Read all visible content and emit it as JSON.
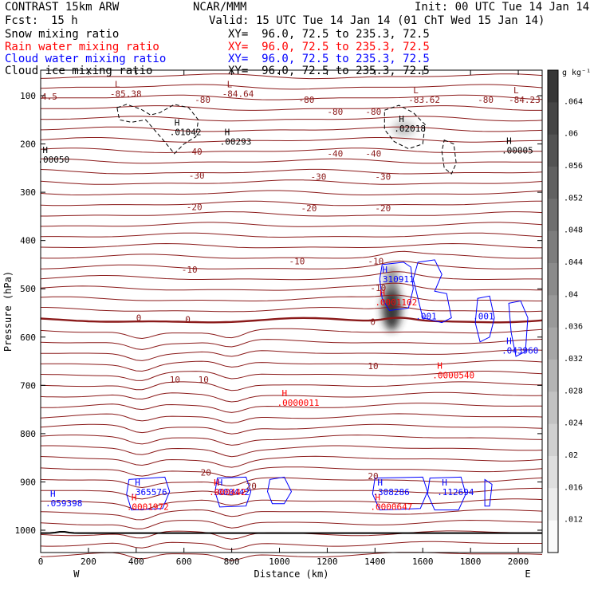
{
  "header": {
    "model": "CONTRAST 15km ARW",
    "center": "NCAR/MMM",
    "init": "Init: 00 UTC Tue 14 Jan 14",
    "fcst_label": "Fcst:",
    "fcst_value": "15 h",
    "valid": "Valid: 15 UTC Tue 14 Jan 14 (01 ChT Wed 15 Jan 14)",
    "fields": [
      {
        "name": "Snow mixing ratio",
        "xy": "XY=  96.0, 72.5 to 235.3, 72.5",
        "color": "#000000"
      },
      {
        "name": "Rain water mixing ratio",
        "xy": "XY=  96.0, 72.5 to 235.3, 72.5",
        "color": "#ff0000"
      },
      {
        "name": "Cloud water mixing ratio",
        "xy": "XY=  96.0, 72.5 to 235.3, 72.5",
        "color": "#0000ff"
      },
      {
        "name": "Cloud ice mixing ratio",
        "xy": "XY=  96.0, 72.5 to 235.3, 72.5",
        "color": "#000000"
      }
    ]
  },
  "chart_data": {
    "type": "contour",
    "xlabel": "Distance (km)",
    "ylabel": "Pressure (hPa)",
    "xlim": [
      0,
      2100
    ],
    "ylim": [
      1050,
      50
    ],
    "x_ticks": [
      0,
      200,
      400,
      600,
      800,
      1000,
      1200,
      1400,
      1600,
      1800,
      2000
    ],
    "y_ticks": [
      100,
      200,
      300,
      400,
      500,
      600,
      700,
      800,
      900,
      1000
    ],
    "x_end_labels": {
      "left": "W",
      "right": "E"
    },
    "colorbar": {
      "unit": "g kg⁻¹",
      "ticks": [
        ".064",
        ".06",
        ".056",
        ".052",
        ".048",
        ".044",
        ".04",
        ".036",
        ".032",
        ".028",
        ".024",
        ".02",
        ".016",
        ".012"
      ]
    },
    "colors": {
      "temperature": "#8b1a1a",
      "rain": "#ff0000",
      "cloud_water": "#0000ff",
      "cloud_ice": "#000000",
      "snow": "#444444"
    },
    "temperature_contour_labels": [
      {
        "x": 645,
        "y": 108,
        "text": "-80"
      },
      {
        "x": 1080,
        "y": 108,
        "text": "-80"
      },
      {
        "x": 1830,
        "y": 108,
        "text": "-80"
      },
      {
        "x": 1200,
        "y": 133,
        "text": "-80"
      },
      {
        "x": 1360,
        "y": 133,
        "text": "-80"
      },
      {
        "x": 610,
        "y": 216,
        "text": "-40"
      },
      {
        "x": 1200,
        "y": 220,
        "text": "-40"
      },
      {
        "x": 1360,
        "y": 220,
        "text": "-40"
      },
      {
        "x": 620,
        "y": 265,
        "text": "-30"
      },
      {
        "x": 1130,
        "y": 268,
        "text": "-30"
      },
      {
        "x": 1400,
        "y": 268,
        "text": "-30"
      },
      {
        "x": 610,
        "y": 330,
        "text": "-20"
      },
      {
        "x": 1090,
        "y": 333,
        "text": "-20"
      },
      {
        "x": 1400,
        "y": 333,
        "text": "-20"
      },
      {
        "x": 1040,
        "y": 443,
        "text": "-10"
      },
      {
        "x": 1370,
        "y": 443,
        "text": "-10"
      },
      {
        "x": 590,
        "y": 460,
        "text": "-10"
      },
      {
        "x": 1380,
        "y": 498,
        "text": "-10"
      },
      {
        "x": 400,
        "y": 560,
        "text": "0"
      },
      {
        "x": 605,
        "y": 563,
        "text": "0"
      },
      {
        "x": 1380,
        "y": 568,
        "text": "0"
      },
      {
        "x": 1370,
        "y": 660,
        "text": "10"
      },
      {
        "x": 540,
        "y": 688,
        "text": "10"
      },
      {
        "x": 660,
        "y": 688,
        "text": "10"
      },
      {
        "x": 670,
        "y": 880,
        "text": "20"
      },
      {
        "x": 860,
        "y": 908,
        "text": "20"
      },
      {
        "x": 1370,
        "y": 888,
        "text": "20"
      }
    ],
    "extrema_labels": [
      {
        "x": 310,
        "y": 86,
        "letter": "L",
        "value": "-85.38",
        "color": "#8b1a1a"
      },
      {
        "x": 780,
        "y": 86,
        "letter": "L",
        "value": "-84.64",
        "color": "#8b1a1a"
      },
      {
        "x": 1560,
        "y": 98,
        "letter": "L",
        "value": "-83.62",
        "color": "#8b1a1a"
      },
      {
        "x": 1980,
        "y": 98,
        "letter": "L",
        "value": "-84.23",
        "color": "#8b1a1a"
      },
      {
        "x": 560,
        "y": 165,
        "letter": "H",
        "value": ".01042",
        "color": "#000000"
      },
      {
        "x": 770,
        "y": 185,
        "letter": "H",
        "value": ".00293",
        "color": "#000000"
      },
      {
        "x": 1500,
        "y": 158,
        "letter": "H",
        "value": ".02018",
        "color": "#000000"
      },
      {
        "x": 1950,
        "y": 203,
        "letter": "H",
        "value": ".00005",
        "color": "#000000"
      },
      {
        "x": 8,
        "y": 222,
        "letter": "H",
        "value": ".00050",
        "color": "#000000"
      },
      {
        "x": 1430,
        "y": 470,
        "letter": "H",
        "value": ".310911",
        "color": "#0000ff"
      },
      {
        "x": 1420,
        "y": 518,
        "letter": "H",
        "value": ".0001102",
        "color": "#ff0000"
      },
      {
        "x": 1950,
        "y": 618,
        "letter": "H",
        "value": ".043960",
        "color": "#0000ff"
      },
      {
        "x": 1660,
        "y": 669,
        "letter": "H",
        "value": ".0000540",
        "color": "#ff0000"
      },
      {
        "x": 1010,
        "y": 726,
        "letter": "H",
        "value": ".0000011",
        "color": "#ff0000"
      },
      {
        "x": 40,
        "y": 934,
        "letter": "H",
        "value": ".059398",
        "color": "#0000ff"
      },
      {
        "x": 395,
        "y": 911,
        "letter": "H",
        "value": ".365576",
        "color": "#0000ff"
      },
      {
        "x": 380,
        "y": 941,
        "letter": "H",
        "value": ".0001972",
        "color": "#ff0000"
      },
      {
        "x": 740,
        "y": 911,
        "letter": "H",
        "value": ".000442",
        "color": "#0000ff"
      },
      {
        "x": 725,
        "y": 911,
        "letter": "H",
        "value": ".000442",
        "color": "#ff0000"
      },
      {
        "x": 1410,
        "y": 911,
        "letter": "H",
        "value": ".308286",
        "color": "#0000ff"
      },
      {
        "x": 1400,
        "y": 941,
        "letter": "H",
        "value": ".0000647",
        "color": "#ff0000"
      },
      {
        "x": 1680,
        "y": 911,
        "letter": "H",
        "value": ".112694",
        "color": "#0000ff"
      }
    ],
    "cloud_water_contour_labels": [
      {
        "x": 1570,
        "y": 557,
        "text": ".001"
      },
      {
        "x": 1810,
        "y": 557,
        "text": ".001"
      }
    ],
    "corner_labels": [
      {
        "x": 10,
        "y": 102,
        "text": "4.5"
      }
    ]
  }
}
